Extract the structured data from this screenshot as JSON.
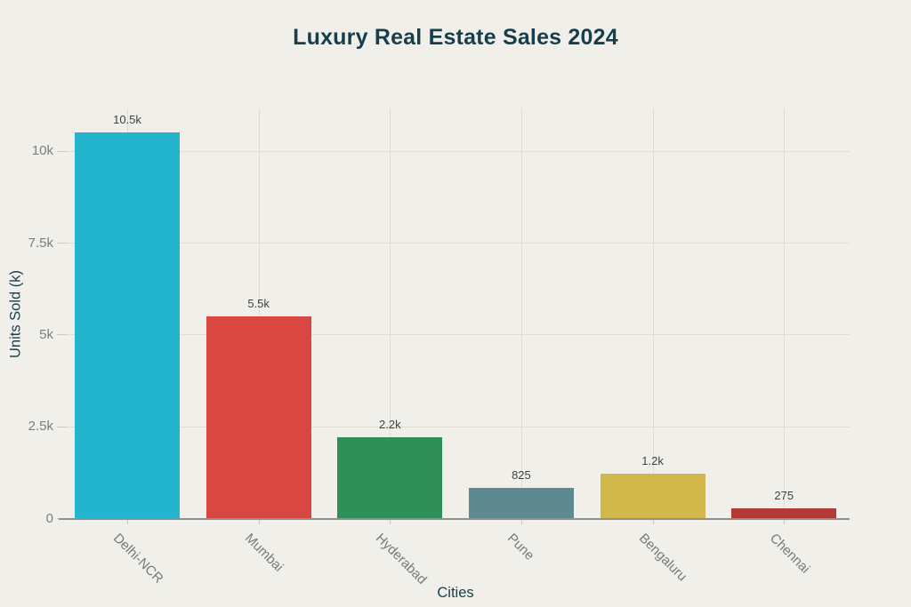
{
  "page": {
    "background_color": "#f0efe9"
  },
  "chart_data": {
    "type": "bar",
    "title": "Luxury Real Estate Sales 2024",
    "xlabel": "Cities",
    "ylabel": "Units Sold (k)",
    "categories": [
      "Delhi-NCR",
      "Mumbai",
      "Hyderabad",
      "Pune",
      "Bengaluru",
      "Chennai"
    ],
    "values": [
      10500,
      5500,
      2200,
      825,
      1200,
      275
    ],
    "value_labels": [
      "10.5k",
      "5.5k",
      "2.2k",
      "825",
      "1.2k",
      "275"
    ],
    "bar_colors": [
      "#23b4ce",
      "#d94743",
      "#2e8f59",
      "#5e898e",
      "#d2b84a",
      "#b13a34"
    ],
    "y_ticks": [
      {
        "value": 0,
        "label": "0"
      },
      {
        "value": 2500,
        "label": "2.5k"
      },
      {
        "value": 5000,
        "label": "5k"
      },
      {
        "value": 7500,
        "label": "7.5k"
      },
      {
        "value": 10000,
        "label": "10k"
      }
    ],
    "ylim": [
      0,
      11160
    ],
    "grid": true,
    "legend_position": "none",
    "colors": {
      "title": "#173f4b",
      "axis_title": "#173f4b",
      "tick_label": "#7b7f80",
      "category_label": "#76797b",
      "data_label": "#39444a",
      "axis_line": "#8f908c",
      "hgrid_line": "#e0ded6",
      "vgrid_line": "#dbdad2",
      "tick_mark": "#c9c8c1"
    }
  }
}
